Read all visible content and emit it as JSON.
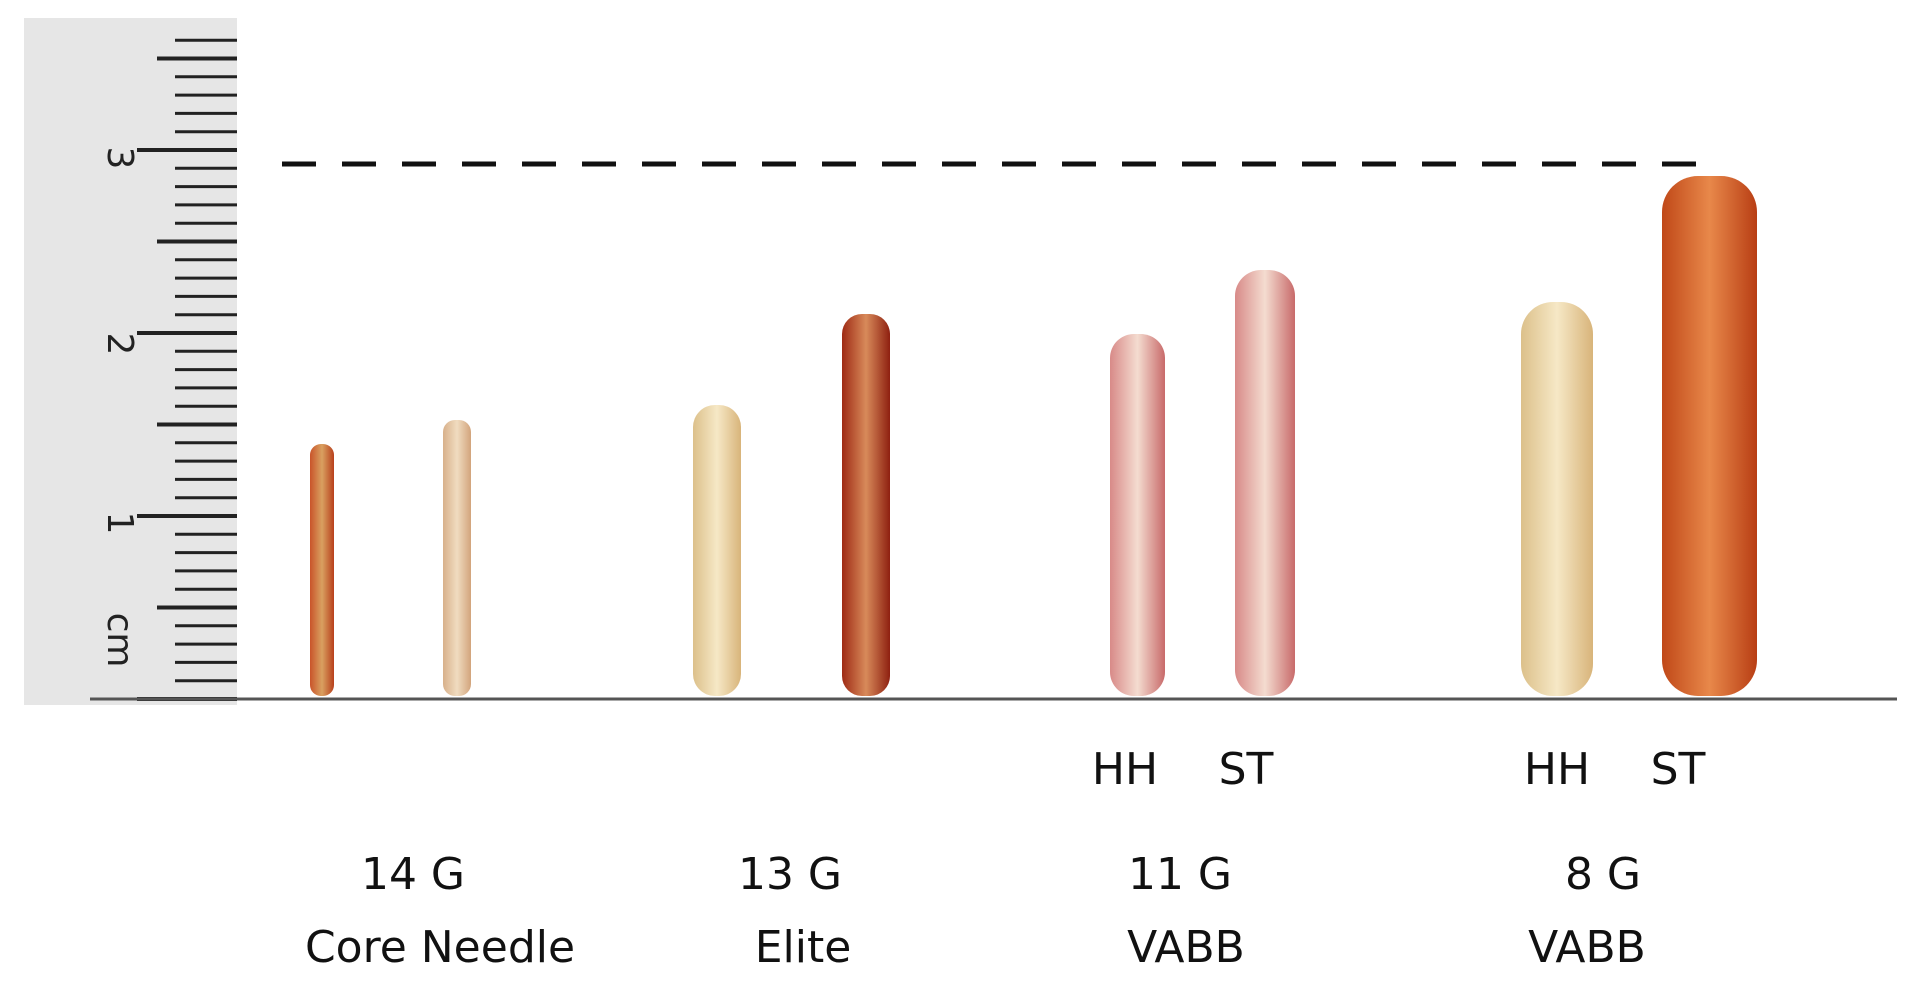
{
  "ruler": {
    "unit": "cm",
    "labels": [
      "1",
      "2",
      "3"
    ]
  },
  "groups": [
    {
      "gauge": "14 G",
      "name": "Core Needle"
    },
    {
      "gauge": "13 G",
      "name": "Elite"
    },
    {
      "gauge": "11 G",
      "name": "VABB",
      "samples": [
        "HH",
        "ST"
      ]
    },
    {
      "gauge": "8 G",
      "name": "VABB",
      "samples": [
        "HH",
        "ST"
      ]
    }
  ]
}
